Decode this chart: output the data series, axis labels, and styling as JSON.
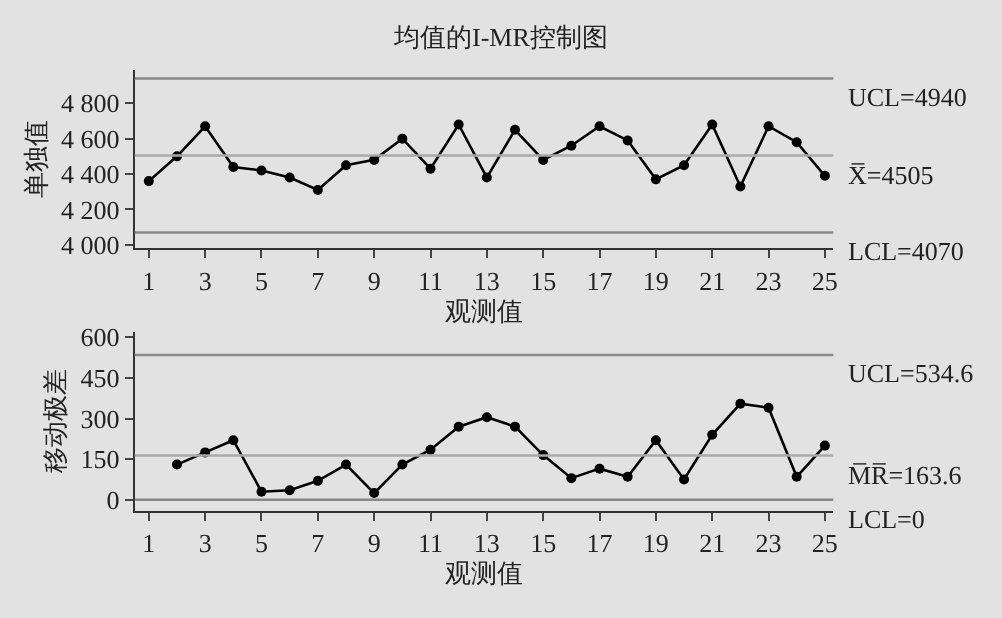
{
  "chart_data": [
    {
      "type": "line",
      "title": "均值的I-MR控制图",
      "xlabel": "观测值",
      "ylabel": "单独值",
      "x": [
        1,
        2,
        3,
        4,
        5,
        6,
        7,
        8,
        9,
        10,
        11,
        12,
        13,
        14,
        15,
        16,
        17,
        18,
        19,
        20,
        21,
        22,
        23,
        24,
        25
      ],
      "series": [
        {
          "color": "#000000",
          "values": [
            4360,
            4500,
            4670,
            4440,
            4420,
            4380,
            4310,
            4450,
            4480,
            4600,
            4430,
            4680,
            4380,
            4650,
            4480,
            4560,
            4670,
            4590,
            4370,
            4450,
            4680,
            4330,
            4670,
            4580,
            4390
          ]
        }
      ],
      "xlim": [
        0.5,
        25.3
      ],
      "xticks": [
        1,
        3,
        5,
        7,
        9,
        11,
        13,
        15,
        17,
        19,
        21,
        23,
        25
      ],
      "ylim": [
        3980,
        4990
      ],
      "yticks": [
        {
          "value": 4000,
          "label": "4 000"
        },
        {
          "value": 4200,
          "label": "4 200"
        },
        {
          "value": 4400,
          "label": "4 400"
        },
        {
          "value": 4600,
          "label": "4 600"
        },
        {
          "value": 4800,
          "label": "4 800"
        }
      ],
      "ref_lines": [
        {
          "axis": "y",
          "value": 4940,
          "label": "UCL=4940",
          "color": "#888888"
        },
        {
          "axis": "y",
          "value": 4505,
          "label": "X̅=4505",
          "color": "#aaaaaa"
        },
        {
          "axis": "y",
          "value": 4070,
          "label": "LCL=4070",
          "color": "#888888"
        }
      ],
      "grid": false,
      "marker": "circle",
      "line_style": "solid"
    },
    {
      "type": "line",
      "xlabel": "观测值",
      "ylabel": "移动极差",
      "series": [
        {
          "color": "#000000",
          "x": [
            2,
            3,
            4,
            5,
            6,
            7,
            8,
            9,
            10,
            11,
            12,
            13,
            14,
            15,
            16,
            17,
            18,
            19,
            20,
            21,
            22,
            23,
            24,
            25
          ],
          "values": [
            130,
            175,
            220,
            30,
            35,
            70,
            130,
            25,
            130,
            185,
            270,
            305,
            270,
            165,
            80,
            115,
            85,
            220,
            75,
            240,
            355,
            340,
            85,
            200
          ]
        }
      ],
      "xlim": [
        0.5,
        25.3
      ],
      "xticks": [
        1,
        3,
        5,
        7,
        9,
        11,
        13,
        15,
        17,
        19,
        21,
        23,
        25
      ],
      "ylim": [
        -40,
        620
      ],
      "yticks": [
        0,
        150,
        300,
        450,
        600
      ],
      "ref_lines": [
        {
          "axis": "y",
          "value": 534.6,
          "label": "UCL=534.6",
          "color": "#888888"
        },
        {
          "axis": "y",
          "value": 163.6,
          "label": "M̅R̅=163.6",
          "color": "#aaaaaa"
        },
        {
          "axis": "y",
          "value": 0,
          "label": "LCL=0",
          "color": "#888888"
        }
      ],
      "grid": false,
      "marker": "circle",
      "line_style": "solid"
    }
  ]
}
